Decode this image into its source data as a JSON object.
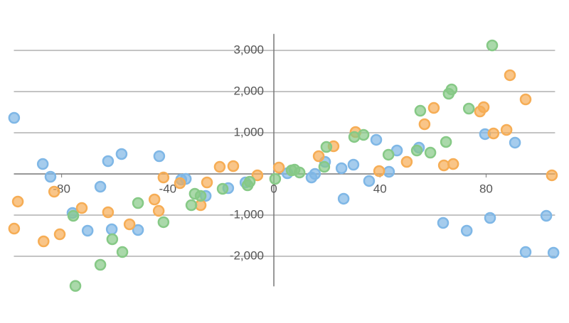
{
  "chart_data": {
    "type": "scatter",
    "xlim": [
      -98,
      106
    ],
    "ylim": [
      -2800,
      3400
    ],
    "xticks": [
      -80,
      -40,
      0,
      40,
      80
    ],
    "yticks": [
      {
        "value": -2000,
        "label": "-2,000"
      },
      {
        "value": -1000,
        "label": "-1,000"
      },
      {
        "value": 1000,
        "label": "1,000"
      },
      {
        "value": 2000,
        "label": "2,000"
      },
      {
        "value": 3000,
        "label": "3,000"
      }
    ],
    "grid": true,
    "series": [
      {
        "color": "#7fb7e6",
        "x": [
          -97.9,
          -87.1,
          -84.2,
          -65.4,
          -62.5,
          -57.4,
          -75.9,
          -70.2,
          -61.1,
          -51.2,
          -43.2,
          -34.9,
          -33.2,
          -25.7,
          -17.2,
          -10.7,
          5.1,
          14.2,
          15.5,
          19.3,
          25.5,
          26.3,
          30.0,
          35.9,
          38.6,
          43.4,
          46.4,
          54.7,
          63.8,
          72.7,
          79.6,
          81.5,
          90.9,
          94.9,
          102.7,
          105.4
        ],
        "values": [
          1362,
          241,
          -69,
          -310,
          310,
          483,
          -948,
          -1379,
          -1345,
          -1362,
          431,
          -138,
          -121,
          -534,
          -345,
          -207,
          17,
          -86,
          0,
          293,
          138,
          -603,
          224,
          -172,
          828,
          52,
          569,
          638,
          -1190,
          -1379,
          966,
          -1069,
          759,
          -1897,
          -1017,
          -1914
        ]
      },
      {
        "color": "#f6ad55",
        "x": [
          -97.9,
          -96.5,
          -86.8,
          -82.8,
          -80.7,
          -72.4,
          -62.5,
          -54.4,
          -45.0,
          -43.4,
          -41.6,
          -35.4,
          -27.6,
          -25.2,
          -20.4,
          -15.3,
          -6.2,
          1.9,
          16.9,
          22.5,
          30.8,
          39.7,
          50.1,
          56.8,
          60.3,
          64.1,
          67.6,
          77.7,
          79.1,
          82.8,
          87.7,
          89.0,
          94.9,
          104.8
        ],
        "values": [
          -1328,
          -672,
          -1638,
          -431,
          -1466,
          -828,
          -931,
          -1224,
          -621,
          -897,
          -86,
          -224,
          -759,
          -207,
          172,
          190,
          -34,
          155,
          431,
          672,
          1017,
          69,
          293,
          1207,
          1603,
          207,
          241,
          1517,
          1621,
          983,
          1069,
          2397,
          1810,
          -34
        ]
      },
      {
        "color": "#86c986",
        "x": [
          -75.6,
          -74.8,
          -65.4,
          -60.9,
          -57.1,
          -51.2,
          -41.6,
          -31.1,
          -29.8,
          -27.6,
          -19.3,
          -9.9,
          -9.1,
          0.5,
          6.7,
          7.8,
          9.7,
          19.0,
          19.8,
          30.3,
          33.8,
          43.2,
          53.9,
          55.2,
          59.0,
          64.9,
          65.9,
          67.0,
          73.5,
          82.3
        ],
        "values": [
          -1017,
          -2720,
          -2207,
          -1586,
          -1897,
          -707,
          -1172,
          -759,
          -483,
          -534,
          -362,
          -276,
          -190,
          -121,
          86,
          103,
          34,
          172,
          655,
          897,
          948,
          466,
          569,
          1534,
          517,
          776,
          1948,
          2052,
          1586,
          3121
        ]
      }
    ]
  }
}
